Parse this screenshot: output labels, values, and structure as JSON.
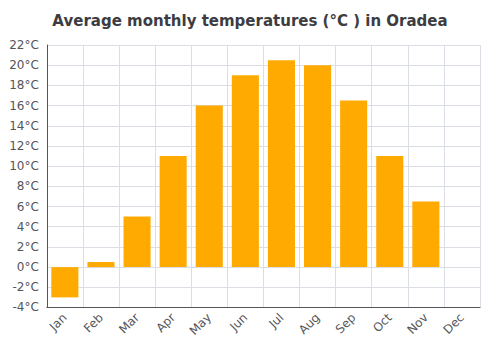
{
  "chart_data": {
    "type": "bar",
    "title": "Average monthly temperatures (°C ) in Oradea",
    "categories": [
      "Jan",
      "Feb",
      "Mar",
      "Apr",
      "May",
      "Jun",
      "Jul",
      "Aug",
      "Sep",
      "Oct",
      "Nov",
      "Dec"
    ],
    "values": [
      -3,
      0.5,
      5,
      11,
      16,
      19,
      20.5,
      20,
      16.5,
      11,
      6.5,
      0
    ],
    "color": "#FFAA00",
    "ylim": [
      -4,
      22
    ],
    "yticks": [
      {
        "value": -4,
        "label": "-4°C"
      },
      {
        "value": -2,
        "label": "-2°C"
      },
      {
        "value": 0,
        "label": "0°C"
      },
      {
        "value": 2,
        "label": "2°C"
      },
      {
        "value": 4,
        "label": "4°C"
      },
      {
        "value": 6,
        "label": "6°C"
      },
      {
        "value": 8,
        "label": "8°C"
      },
      {
        "value": 10,
        "label": "10°C"
      },
      {
        "value": 12,
        "label": "12°C"
      },
      {
        "value": 14,
        "label": "14°C"
      },
      {
        "value": 16,
        "label": "16°C"
      },
      {
        "value": 18,
        "label": "18°C"
      },
      {
        "value": 20,
        "label": "20°C"
      },
      {
        "value": 22,
        "label": "22°C"
      }
    ],
    "grid": true
  }
}
